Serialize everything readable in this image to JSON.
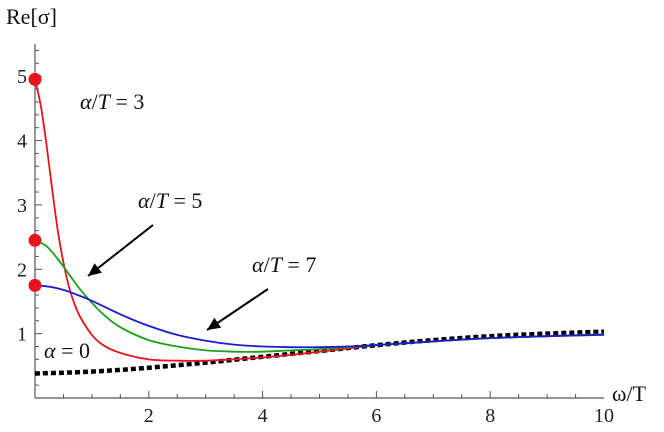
{
  "chart_data": {
    "type": "line",
    "title": "",
    "xlabel": "ω/T",
    "ylabel": "Re[σ]",
    "xlim": [
      0,
      10
    ],
    "ylim": [
      0,
      5.5
    ],
    "xticks": [
      2,
      4,
      6,
      8,
      10
    ],
    "yticks": [
      1,
      2,
      3,
      4,
      5
    ],
    "grid": false,
    "series": [
      {
        "label_var": "α",
        "label_sep": "/",
        "label_den": "T",
        "label_rest": " = 3",
        "color": "#e8141c",
        "style": "solid",
        "x": [
          0,
          0.1,
          0.2,
          0.3,
          0.4,
          0.5,
          0.6,
          0.7,
          0.8,
          1.0,
          1.2,
          1.5,
          2.0,
          2.5,
          3.0,
          3.5,
          4.0,
          4.5,
          5.0,
          5.5,
          6.0,
          7.0,
          8.0,
          9.0,
          10.0
        ],
        "y": [
          4.95,
          4.55,
          3.95,
          3.25,
          2.6,
          2.1,
          1.72,
          1.45,
          1.25,
          0.98,
          0.82,
          0.7,
          0.6,
          0.58,
          0.58,
          0.6,
          0.63,
          0.67,
          0.72,
          0.77,
          0.82,
          0.88,
          0.93,
          0.96,
          0.99
        ],
        "marker_at_zero": true,
        "annotation_arrow": false
      },
      {
        "label_var": "α",
        "label_sep": "/",
        "label_den": "T",
        "label_rest": " = 5",
        "color": "#17a21b",
        "style": "solid",
        "x": [
          0,
          0.2,
          0.4,
          0.6,
          0.8,
          1.0,
          1.2,
          1.5,
          2.0,
          2.5,
          3.0,
          3.5,
          4.0,
          4.5,
          5.0,
          6.0,
          7.0,
          8.0,
          9.0,
          10.0
        ],
        "y": [
          2.45,
          2.36,
          2.16,
          1.92,
          1.68,
          1.48,
          1.3,
          1.1,
          0.9,
          0.8,
          0.74,
          0.72,
          0.72,
          0.74,
          0.76,
          0.82,
          0.88,
          0.93,
          0.96,
          0.99
        ],
        "marker_at_zero": true,
        "annotation_arrow": true
      },
      {
        "label_var": "α",
        "label_sep": "/",
        "label_den": "T",
        "label_rest": " = 7",
        "color": "#1c1ccc",
        "style": "solid",
        "x": [
          0,
          0.25,
          0.5,
          0.75,
          1.0,
          1.5,
          2.0,
          2.5,
          3.0,
          3.5,
          4.0,
          4.5,
          5.0,
          5.5,
          6.0,
          7.0,
          8.0,
          9.0,
          10.0
        ],
        "y": [
          1.75,
          1.73,
          1.68,
          1.6,
          1.51,
          1.3,
          1.12,
          0.98,
          0.89,
          0.83,
          0.8,
          0.79,
          0.79,
          0.8,
          0.82,
          0.88,
          0.93,
          0.96,
          0.98
        ],
        "marker_at_zero": true,
        "annotation_arrow": true
      },
      {
        "label_var": "α",
        "label_sep": "",
        "label_den": "",
        "label_rest": " = 0",
        "color": "#000000",
        "style": "dotted",
        "x": [
          0,
          1,
          2,
          3,
          4,
          5,
          6,
          7,
          8,
          9,
          10
        ],
        "y": [
          0.38,
          0.41,
          0.47,
          0.55,
          0.64,
          0.73,
          0.82,
          0.9,
          0.96,
          1.0,
          1.03
        ],
        "marker_at_zero": false,
        "annotation_arrow": false
      }
    ],
    "marker_color": "#e8141c"
  }
}
